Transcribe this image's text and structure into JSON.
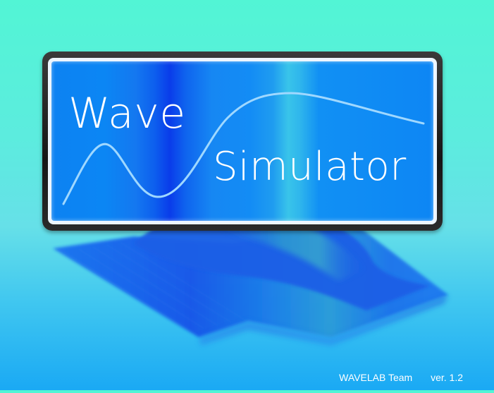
{
  "splash": {
    "title_line_1": "Wave",
    "title_line_2": "Simulator",
    "team": "WAVELAB Team",
    "version": "ver. 1.2"
  },
  "icons": {
    "logo_curve": "wave-curve-icon",
    "surface": "wave-surface-illustration"
  },
  "colors": {
    "background_top": "#52f5d5",
    "background_bottom": "#1aa9f4",
    "panel_blue": "#0d86f4",
    "frame": "#1e1e1e",
    "text": "#ffffff"
  }
}
